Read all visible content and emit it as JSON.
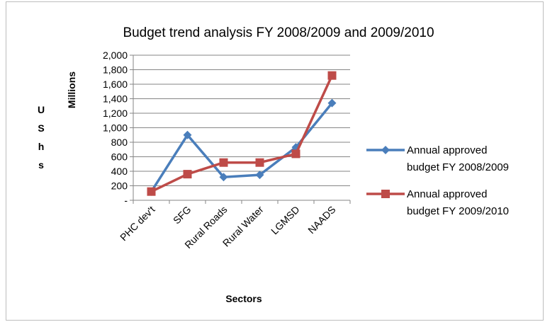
{
  "chart_data": {
    "type": "line",
    "title": "Budget trend analysis FY 2008/2009 and 2009/2010",
    "xlabel": "Sectors",
    "ylabel": "Millions",
    "ylabel_side_letters": [
      "U",
      "S",
      "h",
      "s"
    ],
    "categories": [
      "PHC dev't",
      "SFG",
      "Rural Roads",
      "Rural Water",
      "LGMSD",
      "NAADS"
    ],
    "ylim": [
      0,
      2000
    ],
    "yticks": [
      0,
      200,
      400,
      600,
      800,
      1000,
      1200,
      1400,
      1600,
      1800,
      2000
    ],
    "ytick_labels": [
      "-",
      "200",
      "400",
      "600",
      "800",
      "1,000",
      "1,200",
      "1,400",
      "1,600",
      "1,800",
      "2,000"
    ],
    "grid": true,
    "legend_position": "right",
    "series": [
      {
        "name_lines": [
          "Annual approved",
          "budget FY 2008/2009"
        ],
        "color": "#4a7ebb",
        "marker": "diamond",
        "values": [
          120,
          900,
          320,
          350,
          730,
          1340
        ]
      },
      {
        "name_lines": [
          "Annual approved",
          "budget FY 2009/2010"
        ],
        "color": "#be4b48",
        "marker": "square",
        "values": [
          120,
          360,
          520,
          520,
          640,
          1720
        ]
      }
    ]
  }
}
